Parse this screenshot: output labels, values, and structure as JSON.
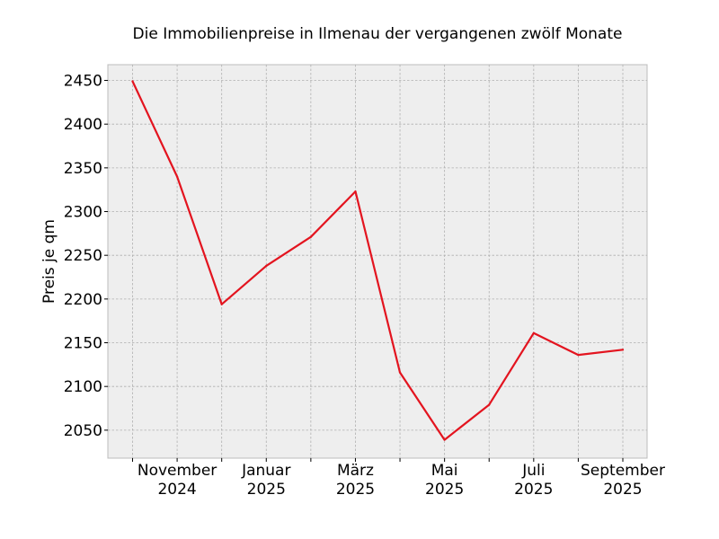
{
  "chart_data": {
    "type": "line",
    "title": "Die Immobilienpreise in Ilmenau der vergangenen zwölf Monate",
    "xlabel": "",
    "ylabel": "Preis je qm",
    "x": [
      "2024-10",
      "2024-11",
      "2024-12",
      "2025-01",
      "2025-02",
      "2025-03",
      "2025-04",
      "2025-05",
      "2025-06",
      "2025-07",
      "2025-08",
      "2025-09"
    ],
    "series": [
      {
        "values": [
          2449,
          2340,
          2194,
          2238,
          2271,
          2323,
          2116,
          2039,
          2079,
          2161,
          2136,
          2142
        ]
      }
    ],
    "ylim": [
      2018,
      2468
    ],
    "yticks": [
      2050,
      2100,
      2150,
      2200,
      2250,
      2300,
      2350,
      2400,
      2450
    ],
    "xtick_labels": [
      {
        "month": "November",
        "year": "2024"
      },
      {
        "month": "Januar",
        "year": "2025"
      },
      {
        "month": "März",
        "year": "2025"
      },
      {
        "month": "Mai",
        "year": "2025"
      },
      {
        "month": "Juli",
        "year": "2025"
      },
      {
        "month": "September",
        "year": "2025"
      }
    ],
    "grid": true,
    "line_color": "#e3141f",
    "background_color": "#eeeeee"
  }
}
